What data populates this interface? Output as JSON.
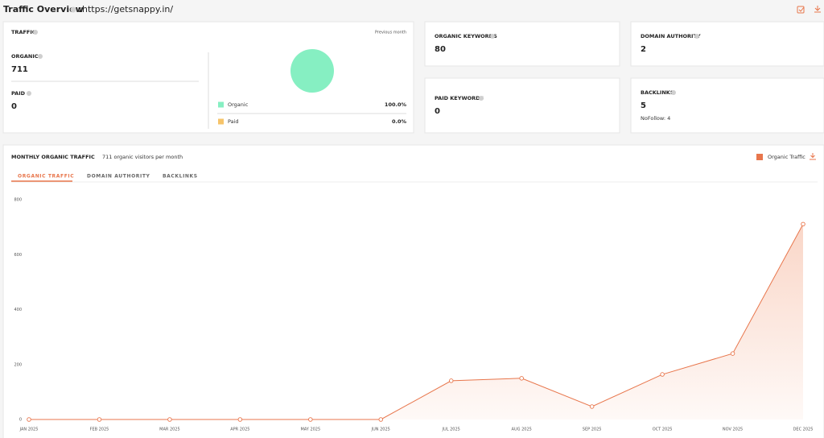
{
  "header": {
    "title": "Traffic Overview",
    "separator": ":",
    "url": "https://getsnappy.in/"
  },
  "traffic": {
    "title": "TRAFFIC",
    "period": "Previous month",
    "organic_label": "ORGANIC",
    "organic_value": 711,
    "paid_label": "PAID",
    "paid_value": 0,
    "pie": {
      "type": "pie",
      "categories": [
        "Organic",
        "Paid"
      ],
      "values": [
        100,
        0
      ],
      "value_labels": [
        "100.0%",
        "0.0%"
      ],
      "colors": [
        "#86efc2",
        "#f6c46a"
      ]
    }
  },
  "cards": [
    {
      "label": "ORGANIC KEYWORDS",
      "value": 80
    },
    {
      "label": "DOMAIN AUTHORITY",
      "value": 2
    },
    {
      "label": "PAID KEYWORDS",
      "value": 0
    },
    {
      "label": "BACKLINKS",
      "value": 5,
      "note": "NoFollow: 4"
    }
  ],
  "monthly": {
    "title": "MONTHLY ORGANIC TRAFFIC",
    "subtitle": "711 organic visitors per month",
    "tabs": [
      "ORGANIC TRAFFIC",
      "DOMAIN AUTHORITY",
      "BACKLINKS"
    ],
    "active_tab": 0
  },
  "chart_data": {
    "type": "line",
    "categories": [
      "JAN 2025",
      "FEB 2025",
      "MAR 2025",
      "APR 2025",
      "MAY 2025",
      "JUN 2025",
      "JUL 2025",
      "AUG 2025",
      "SEP 2025",
      "OCT 2025",
      "NOV 2025",
      "DEC 2025"
    ],
    "series": [
      {
        "name": "Organic Traffic",
        "color": "#e8764c",
        "values": [
          0,
          0,
          0,
          0,
          0,
          0,
          141,
          150,
          47,
          164,
          240,
          711
        ]
      }
    ],
    "ylim": [
      0,
      800
    ],
    "yticks": [
      0,
      200,
      400,
      600,
      800
    ],
    "area": true,
    "grid": false
  }
}
